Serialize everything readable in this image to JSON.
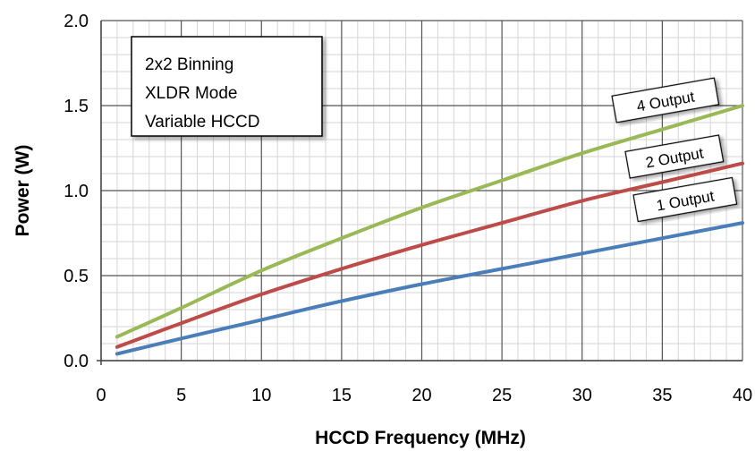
{
  "chart_data": {
    "type": "line",
    "xlabel": "HCCD Frequency (MHz)",
    "ylabel": "Power (W)",
    "xlim": [
      0,
      40
    ],
    "ylim": [
      0,
      2.0
    ],
    "x_ticks": [
      "0",
      "5",
      "10",
      "15",
      "20",
      "25",
      "30",
      "35",
      "40"
    ],
    "y_ticks": [
      "0.0",
      "0.5",
      "1.0",
      "1.5",
      "2.0"
    ],
    "grid": true,
    "minor_grid": true,
    "annotation_lines": [
      "2x2 Binning",
      "XLDR Mode",
      "Variable HCCD"
    ],
    "x": [
      1,
      5,
      10,
      15,
      20,
      25,
      30,
      35,
      40
    ],
    "series": [
      {
        "name": "1 Output",
        "color": "#4a7ebb",
        "values": [
          0.04,
          0.13,
          0.24,
          0.35,
          0.45,
          0.54,
          0.63,
          0.72,
          0.81
        ]
      },
      {
        "name": "2 Output",
        "color": "#be4b48",
        "values": [
          0.08,
          0.22,
          0.39,
          0.54,
          0.68,
          0.81,
          0.94,
          1.05,
          1.16
        ]
      },
      {
        "name": "4 Output",
        "color": "#98b954",
        "values": [
          0.14,
          0.31,
          0.53,
          0.72,
          0.9,
          1.06,
          1.22,
          1.36,
          1.5
        ]
      }
    ]
  }
}
